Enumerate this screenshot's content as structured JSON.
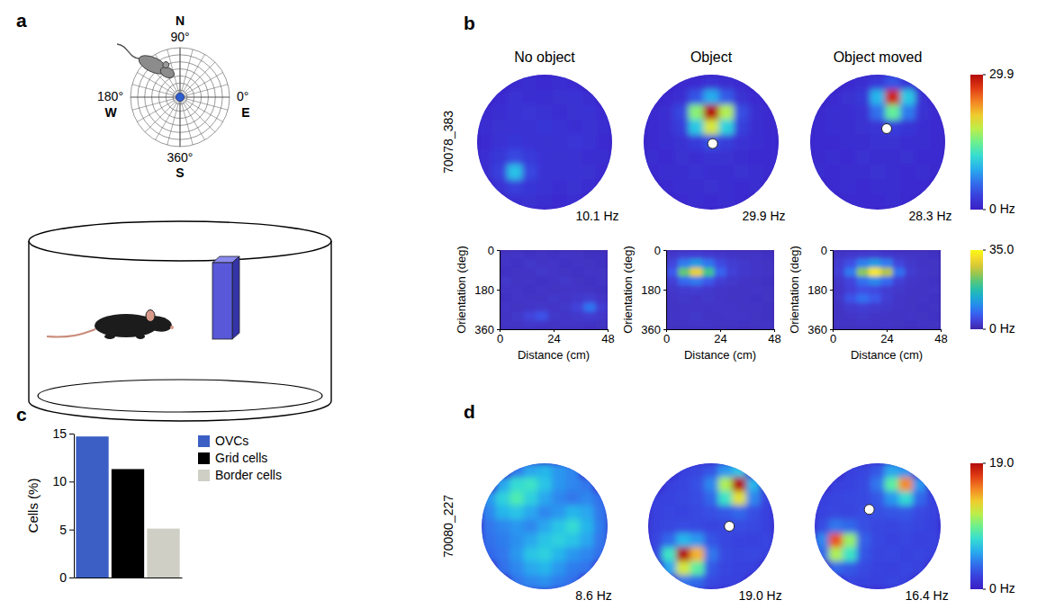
{
  "diagram": {
    "panel": "a",
    "compass": {
      "north": {
        "letter": "N",
        "angle": "90°"
      },
      "west": {
        "letter": "W",
        "angle": "180°"
      },
      "east": {
        "letter": "E",
        "angle": "0°"
      },
      "south": {
        "letter": "S",
        "angle": "360°"
      }
    }
  },
  "chart_data": [
    {
      "type": "heatmap",
      "panel": "b",
      "row_label": "70078_383",
      "colorbar": {
        "range": [
          0,
          29.9
        ],
        "ticks": [
          29.9,
          {
            "value": 0,
            "label": "0 Hz"
          }
        ]
      },
      "maps": [
        {
          "title": "No object",
          "peak_label": "10.1 Hz",
          "cells": [
            [
              null,
              null,
              1.2,
              1.5,
              1.4,
              1.6,
              1.3,
              null,
              null
            ],
            [
              null,
              1.4,
              1.8,
              1.6,
              1.5,
              1.7,
              1.9,
              1.5,
              null
            ],
            [
              1.3,
              1.6,
              1.9,
              2.1,
              1.8,
              1.6,
              1.7,
              2.0,
              1.4
            ],
            [
              1.5,
              1.7,
              2.0,
              1.8,
              2.2,
              1.9,
              1.6,
              1.8,
              1.5
            ],
            [
              1.4,
              1.9,
              2.2,
              2.0,
              1.7,
              1.8,
              2.1,
              1.9,
              1.3
            ],
            [
              1.6,
              2.4,
              3.8,
              2.6,
              1.9,
              1.7,
              1.8,
              1.6,
              1.5
            ],
            [
              1.5,
              3.2,
              10.1,
              3.5,
              2.0,
              1.8,
              1.9,
              1.7,
              1.4
            ],
            [
              null,
              1.9,
              3.0,
              2.2,
              1.8,
              1.6,
              1.7,
              1.5,
              null
            ],
            [
              null,
              null,
              1.6,
              1.7,
              1.5,
              1.4,
              1.6,
              null,
              null
            ]
          ]
        },
        {
          "title": "Object",
          "peak_label": "29.9 Hz",
          "object": [
            4.6,
            4.6
          ],
          "cells": [
            [
              null,
              null,
              1.2,
              1.4,
              1.8,
              1.5,
              1.3,
              null,
              null
            ],
            [
              null,
              1.3,
              1.6,
              4.5,
              9.0,
              4.8,
              1.7,
              1.4,
              null
            ],
            [
              1.2,
              1.5,
              3.5,
              16.0,
              29.9,
              17.5,
              4.0,
              1.6,
              1.3
            ],
            [
              1.4,
              1.6,
              2.8,
              10.5,
              19.0,
              11.0,
              3.0,
              1.5,
              1.2
            ],
            [
              1.3,
              1.5,
              1.8,
              2.6,
              4.2,
              2.8,
              1.9,
              1.6,
              1.4
            ],
            [
              1.5,
              1.4,
              1.7,
              1.6,
              1.8,
              1.7,
              1.5,
              1.4,
              1.3
            ],
            [
              1.2,
              1.6,
              1.5,
              1.8,
              1.6,
              1.5,
              1.7,
              1.6,
              1.2
            ],
            [
              null,
              1.4,
              1.6,
              1.5,
              1.7,
              1.6,
              1.4,
              1.5,
              null
            ],
            [
              null,
              null,
              1.3,
              1.5,
              1.4,
              1.6,
              1.3,
              null,
              null
            ]
          ]
        },
        {
          "title": "Object moved",
          "peak_label": "28.3 Hz",
          "object": [
            5.1,
            3.6
          ],
          "cells": [
            [
              null,
              null,
              1.3,
              1.6,
              2.5,
              4.5,
              2.2,
              null,
              null
            ],
            [
              null,
              1.4,
              1.7,
              2.4,
              9.5,
              28.3,
              10.5,
              2.0,
              null
            ],
            [
              1.2,
              1.5,
              1.6,
              2.0,
              6.0,
              14.5,
              6.5,
              1.8,
              1.3
            ],
            [
              1.3,
              1.6,
              1.5,
              1.7,
              2.1,
              2.9,
              2.2,
              1.6,
              1.4
            ],
            [
              1.4,
              1.3,
              1.6,
              1.5,
              1.8,
              1.7,
              1.6,
              1.5,
              1.2
            ],
            [
              1.2,
              1.5,
              1.4,
              1.7,
              1.6,
              1.5,
              1.7,
              1.4,
              1.3
            ],
            [
              1.5,
              1.4,
              1.6,
              1.5,
              1.7,
              1.6,
              1.4,
              1.5,
              1.2
            ],
            [
              null,
              1.3,
              1.5,
              1.4,
              1.6,
              1.5,
              1.3,
              1.4,
              null
            ],
            [
              null,
              null,
              1.2,
              1.4,
              1.3,
              1.5,
              1.2,
              null,
              null
            ]
          ]
        }
      ]
    },
    {
      "type": "heatmap",
      "x_label": "Distance (cm)",
      "y_label": "Orientation (deg)",
      "xlim": [
        0,
        48
      ],
      "xticks": [
        0,
        24,
        48
      ],
      "ylim": [
        0,
        360
      ],
      "yticks": [
        0,
        180,
        360
      ],
      "colorbar": {
        "range": [
          0,
          35
        ],
        "ticks": [
          {
            "value": 35,
            "label": "35.0"
          },
          {
            "value": 0,
            "label": "0 Hz"
          }
        ]
      },
      "maps": [
        {
          "cells": [
            [
              2.0,
              2.3,
              1.8,
              2.1,
              1.9,
              2.2,
              2.0,
              1.7,
              1.9
            ],
            [
              2.2,
              1.9,
              2.4,
              2.0,
              2.3,
              1.8,
              2.1,
              2.0,
              1.8
            ],
            [
              1.8,
              2.1,
              2.0,
              2.5,
              2.2,
              2.0,
              1.9,
              2.2,
              2.0
            ],
            [
              2.4,
              2.0,
              2.2,
              1.9,
              2.1,
              2.4,
              2.0,
              1.8,
              2.1
            ],
            [
              2.1,
              2.3,
              1.9,
              2.2,
              2.0,
              2.1,
              2.3,
              2.0,
              1.9
            ],
            [
              1.9,
              2.2,
              2.1,
              2.0,
              2.4,
              2.2,
              2.6,
              3.0,
              2.2
            ],
            [
              2.3,
              2.0,
              2.2,
              2.4,
              2.1,
              2.5,
              3.8,
              8.5,
              3.2
            ],
            [
              2.0,
              2.4,
              4.0,
              5.5,
              2.6,
              2.2,
              2.5,
              3.0,
              2.4
            ],
            [
              2.2,
              2.1,
              2.5,
              2.3,
              2.0,
              2.2,
              2.1,
              1.9,
              2.0
            ]
          ]
        },
        {
          "cells": [
            [
              2.5,
              3.0,
              3.2,
              2.8,
              2.4,
              2.2,
              2.0,
              2.1,
              1.9
            ],
            [
              4.0,
              9.0,
              12.0,
              8.5,
              4.5,
              3.0,
              2.5,
              2.2,
              2.0
            ],
            [
              6.0,
              22.0,
              30.0,
              20.0,
              7.0,
              3.5,
              2.6,
              2.3,
              2.1
            ],
            [
              3.5,
              7.5,
              9.0,
              6.0,
              3.2,
              2.5,
              2.2,
              2.0,
              1.9
            ],
            [
              2.4,
              2.8,
              3.0,
              2.6,
              2.3,
              2.1,
              2.0,
              2.2,
              2.0
            ],
            [
              2.2,
              2.5,
              2.3,
              2.4,
              2.2,
              2.0,
              2.1,
              1.9,
              2.0
            ],
            [
              2.0,
              2.3,
              2.2,
              2.1,
              2.3,
              2.2,
              2.0,
              2.1,
              1.8
            ],
            [
              2.1,
              2.2,
              2.4,
              2.0,
              2.1,
              2.3,
              2.2,
              2.0,
              1.9
            ],
            [
              2.0,
              2.1,
              2.2,
              2.3,
              2.0,
              2.1,
              1.9,
              2.0,
              2.1
            ]
          ]
        },
        {
          "cells": [
            [
              2.2,
              2.5,
              2.8,
              3.0,
              2.6,
              2.3,
              2.1,
              2.0,
              1.9
            ],
            [
              3.0,
              5.0,
              9.5,
              12.0,
              9.0,
              4.0,
              2.4,
              2.1,
              2.0
            ],
            [
              3.5,
              9.0,
              24.0,
              33.0,
              26.0,
              8.0,
              3.0,
              2.2,
              2.0
            ],
            [
              2.6,
              4.0,
              8.0,
              10.5,
              7.5,
              3.5,
              2.3,
              2.1,
              1.9
            ],
            [
              2.3,
              3.5,
              5.0,
              4.5,
              3.0,
              2.4,
              2.1,
              2.0,
              2.2
            ],
            [
              2.4,
              5.5,
              8.0,
              6.0,
              3.2,
              2.3,
              2.0,
              2.1,
              1.9
            ],
            [
              2.1,
              2.8,
              3.2,
              2.9,
              2.4,
              2.2,
              2.0,
              1.9,
              2.0
            ],
            [
              2.0,
              2.2,
              2.4,
              2.3,
              2.1,
              2.0,
              2.2,
              2.0,
              1.9
            ],
            [
              2.1,
              2.0,
              2.2,
              2.1,
              2.3,
              2.0,
              1.9,
              2.1,
              2.0
            ]
          ]
        }
      ]
    },
    {
      "type": "bar",
      "panel": "c",
      "y_label": "Cells (%)",
      "categories": [
        "OVCs",
        "Grid cells",
        "Border cells"
      ],
      "values": [
        14.7,
        11.3,
        5.1
      ],
      "colors": [
        "#3b5fc4",
        "#000000",
        "#cfcfc6"
      ],
      "ylim": [
        0,
        15
      ],
      "yticks": [
        0,
        5,
        10,
        15
      ],
      "legend": "right",
      "tick_labels": "y"
    },
    {
      "type": "heatmap",
      "panel": "d",
      "row_label": "70080_227",
      "colorbar": {
        "range": [
          0,
          19
        ],
        "ticks": [
          {
            "value": 19,
            "label": "19.0"
          },
          {
            "value": 0,
            "label": "0 Hz"
          }
        ]
      },
      "maps": [
        {
          "peak_label": "8.6 Hz",
          "cells": [
            [
              null,
              null,
              4.0,
              5.5,
              6.0,
              5.0,
              4.5,
              null,
              null
            ],
            [
              null,
              5.5,
              7.5,
              8.0,
              6.5,
              5.0,
              4.5,
              4.0,
              null
            ],
            [
              5.0,
              7.0,
              8.6,
              7.0,
              5.5,
              4.5,
              4.0,
              4.5,
              3.8
            ],
            [
              4.5,
              6.0,
              6.5,
              5.5,
              4.5,
              5.0,
              6.0,
              5.5,
              4.0
            ],
            [
              4.0,
              4.5,
              5.0,
              4.5,
              5.5,
              6.5,
              7.5,
              6.0,
              4.2
            ],
            [
              3.8,
              4.2,
              4.8,
              5.5,
              6.5,
              7.0,
              6.5,
              5.5,
              4.0
            ],
            [
              3.5,
              4.0,
              5.0,
              6.5,
              7.0,
              6.0,
              5.0,
              4.5,
              3.8
            ],
            [
              null,
              3.8,
              4.5,
              5.5,
              6.0,
              5.0,
              4.2,
              3.9,
              null
            ],
            [
              null,
              null,
              4.0,
              4.5,
              4.8,
              4.2,
              3.8,
              null,
              null
            ]
          ]
        },
        {
          "peak_label": "19.0 Hz",
          "object": [
            5.8,
            4.5
          ],
          "cells": [
            [
              null,
              null,
              2.0,
              2.3,
              2.8,
              5.0,
              6.5,
              null,
              null
            ],
            [
              null,
              2.0,
              2.2,
              2.6,
              4.5,
              11.0,
              19.0,
              6.0,
              null
            ],
            [
              2.0,
              2.1,
              2.3,
              2.5,
              3.5,
              8.0,
              12.5,
              4.5,
              2.1
            ],
            [
              2.0,
              2.2,
              2.1,
              2.4,
              2.6,
              3.0,
              3.5,
              2.6,
              2.0
            ],
            [
              2.1,
              2.3,
              2.5,
              2.4,
              2.2,
              2.3,
              2.5,
              2.4,
              2.0
            ],
            [
              2.2,
              3.5,
              6.0,
              5.0,
              2.8,
              2.3,
              2.1,
              2.0,
              2.2
            ],
            [
              2.4,
              8.0,
              19.0,
              14.0,
              4.0,
              2.4,
              2.2,
              2.3,
              2.1
            ],
            [
              null,
              5.5,
              12.0,
              9.0,
              3.0,
              2.2,
              2.1,
              2.0,
              null
            ],
            [
              null,
              null,
              4.0,
              3.5,
              2.4,
              2.1,
              2.0,
              null,
              null
            ]
          ]
        },
        {
          "peak_label": "16.4 Hz",
          "object": [
            3.9,
            3.3
          ],
          "cells": [
            [
              null,
              null,
              2.0,
              2.2,
              3.0,
              5.5,
              5.0,
              null,
              null
            ],
            [
              null,
              2.0,
              2.1,
              2.4,
              4.0,
              9.0,
              15.0,
              5.0,
              null
            ],
            [
              2.0,
              2.2,
              2.3,
              2.4,
              3.0,
              5.0,
              7.5,
              3.5,
              2.0
            ],
            [
              2.1,
              2.3,
              2.2,
              2.5,
              2.6,
              2.8,
              3.0,
              2.4,
              2.1
            ],
            [
              2.5,
              4.0,
              3.5,
              2.6,
              2.3,
              2.2,
              2.4,
              2.2,
              2.0
            ],
            [
              4.5,
              16.4,
              10.5,
              3.2,
              2.3,
              2.1,
              2.2,
              2.0,
              2.1
            ],
            [
              3.5,
              11.0,
              8.0,
              2.8,
              2.2,
              2.3,
              2.1,
              2.2,
              2.0
            ],
            [
              null,
              3.5,
              3.0,
              2.4,
              2.1,
              2.0,
              2.2,
              2.1,
              null
            ],
            [
              null,
              null,
              2.2,
              2.1,
              2.0,
              2.2,
              2.1,
              null,
              null
            ]
          ]
        }
      ]
    }
  ]
}
